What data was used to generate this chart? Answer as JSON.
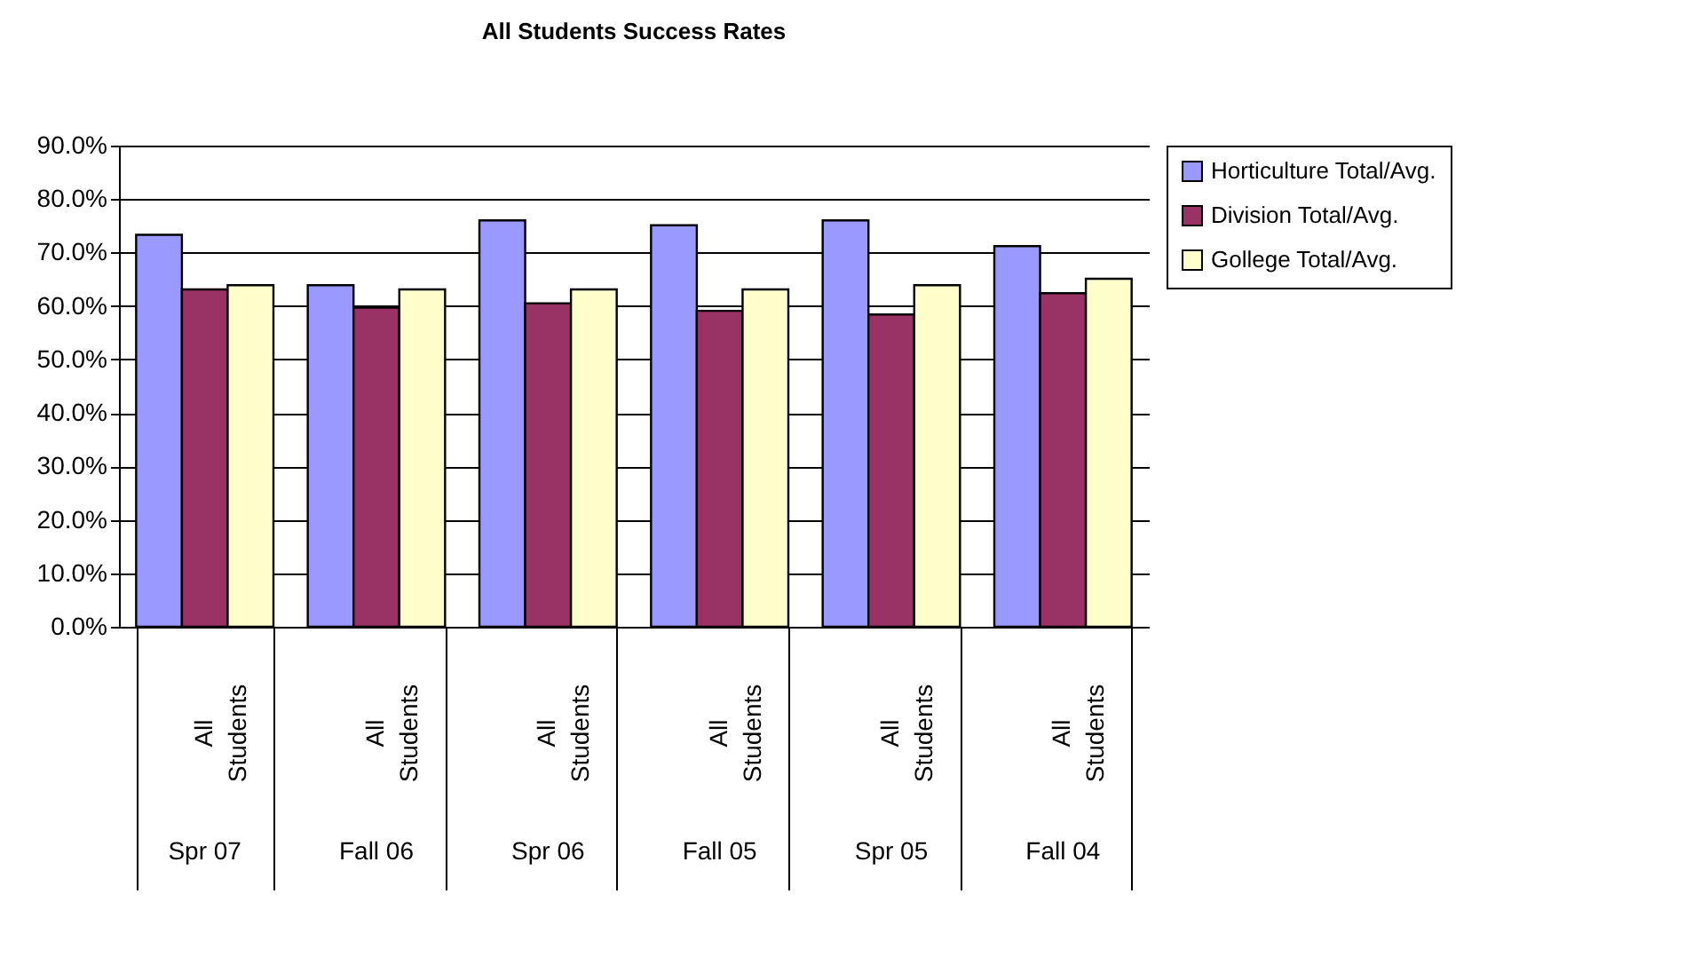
{
  "chart_data": {
    "type": "bar",
    "title": "All Students Success Rates",
    "categories": [
      "All Students",
      "All Students",
      "All Students",
      "All Students",
      "All Students",
      "All Students"
    ],
    "series": [
      {
        "name": "Horticulture Total/Avg.",
        "color": "#9999ff",
        "values": [
          73.3,
          63.9,
          76.0,
          75.1,
          76.0,
          71.2
        ]
      },
      {
        "name": "Division Total/Avg.",
        "color": "#993366",
        "values": [
          63.1,
          59.7,
          60.5,
          59.1,
          58.4,
          62.4
        ]
      },
      {
        "name": "Gollege Total/Avg.",
        "color": "#ffffcc",
        "values": [
          63.9,
          63.1,
          63.1,
          63.1,
          63.9,
          65.1
        ]
      }
    ],
    "ylim": [
      0,
      90
    ],
    "yticks": [
      {
        "value": 0,
        "label": "0.0%"
      },
      {
        "value": 10,
        "label": "10.0%"
      },
      {
        "value": 20,
        "label": "20.0%"
      },
      {
        "value": 30,
        "label": "30.0%"
      },
      {
        "value": 40,
        "label": "40.0%"
      },
      {
        "value": 50,
        "label": "50.0%"
      },
      {
        "value": 60,
        "label": "60.0%"
      },
      {
        "value": 70,
        "label": "70.0%"
      },
      {
        "value": 80,
        "label": "80.0%"
      },
      {
        "value": 90,
        "label": "90.0%"
      }
    ],
    "annotations": [
      "Spr 07",
      "Fall 06",
      "Spr 06",
      "Fall 05",
      "Spr 05",
      "Fall 04"
    ],
    "grid": "y",
    "legend": "right"
  }
}
